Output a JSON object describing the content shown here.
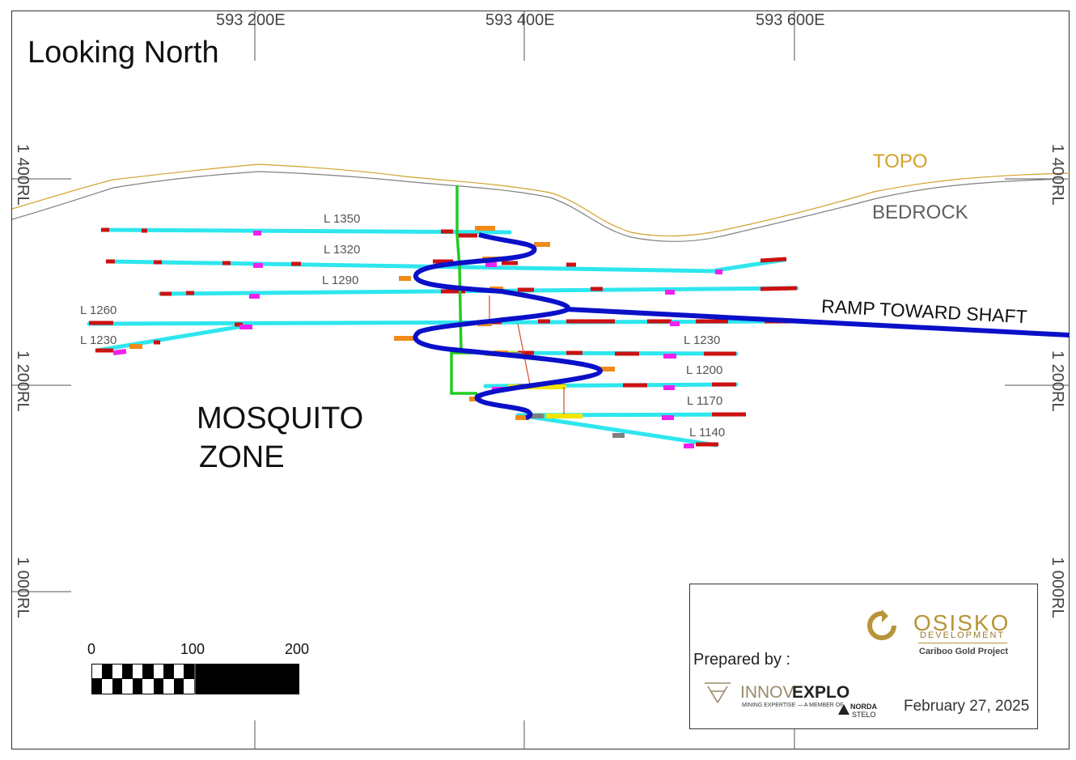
{
  "title": "Looking North",
  "eastings": [
    "593 200E",
    "593 400E",
    "593 600E"
  ],
  "elevations": {
    "rl_1400": "1 400RL",
    "rl_1200": "1 200RL",
    "rl_1000": "1 000RL"
  },
  "surfaces": {
    "topo": "TOPO",
    "bedrock": "BEDROCK",
    "topo_color": "#d4a02a",
    "bedrock_color": "#808080"
  },
  "ramp_label": "RAMP TOWARD SHAFT",
  "zone_label_line1": "MOSQUITO",
  "zone_label_line2": "ZONE",
  "levels_west": [
    "L 1350",
    "L 1320",
    "L 1290",
    "L 1260",
    "L 1230"
  ],
  "levels_east": [
    "L 1230",
    "L 1200",
    "L 1170",
    "L 1140"
  ],
  "scale_bar": {
    "labels": [
      "0",
      "100",
      "200"
    ]
  },
  "credits": {
    "prepared_by": "Prepared by :",
    "osisko_name": "OSISKO",
    "osisko_sub": "DEVELOPMENT",
    "project": "Cariboo Gold Project",
    "innovexplo_a": "INNOV",
    "innovexplo_b": "EXPLO",
    "innovexplo_tag": "MINING EXPERTISE — A MEMBER OF",
    "norda": "NORDA",
    "stelo": "STELO",
    "date": "February 27, 2025"
  },
  "colors": {
    "ramp": "#0a10c8",
    "drift": "#2ee6ee",
    "shaft": "#22cc22",
    "high_grade": "#cc1111",
    "magenta": "#ee22ee",
    "yellow": "#f2e600",
    "orange": "#f08a1a",
    "brand_gold": "#b8943a"
  }
}
